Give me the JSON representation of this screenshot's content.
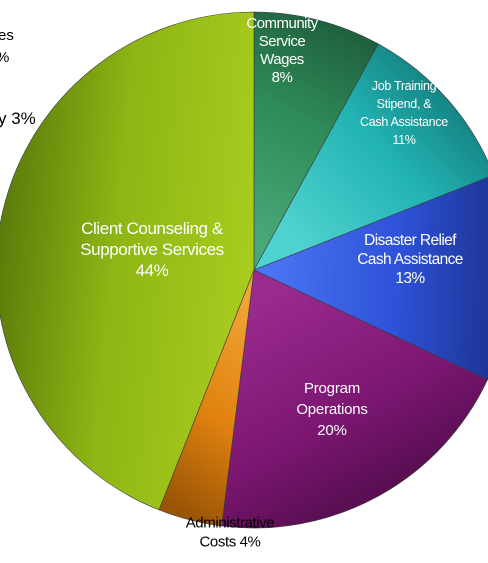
{
  "chart_data": {
    "type": "pie",
    "title": "",
    "slices": [
      {
        "label_lines": [
          "Community",
          "Service",
          "Wages",
          "8%"
        ],
        "value": 8,
        "color": "#2e8b57",
        "color_light": "#4aa97a",
        "color_dark": "#1f5e3d",
        "label_color": "#ffffff"
      },
      {
        "label_lines": [
          "Job Training",
          "Stipend, &",
          "Cash Assistance",
          "11%"
        ],
        "value": 11,
        "color": "#22b3b3",
        "color_light": "#4fd3d0",
        "color_dark": "#137878",
        "label_color": "#ffffff"
      },
      {
        "label_lines": [
          "Disaster Relief",
          "Cash Assistance",
          "13%"
        ],
        "value": 13,
        "color": "#2e52d8",
        "color_light": "#4d78f5",
        "color_dark": "#1b2f8a",
        "label_color": "#ffffff"
      },
      {
        "label_lines": [
          "Program",
          "Operations",
          "20%"
        ],
        "value": 20,
        "color": "#7a1670",
        "color_light": "#9a2a8e",
        "color_dark": "#4a0a45",
        "label_color": "#ffffff"
      },
      {
        "label_lines": [
          "Administrative",
          "Costs 4%"
        ],
        "value": 4,
        "color": "#e0820f",
        "color_light": "#f2a53a",
        "color_dark": "#9a5406",
        "label_color": "#000000"
      },
      {
        "label_lines": [
          "Client Counseling &",
          "Supportive Services",
          "44%"
        ],
        "value": 44,
        "color": "#8db514",
        "color_light": "#a9cc1e",
        "color_dark": "#5a7a0a",
        "label_color": "#ffffff"
      }
    ],
    "clipped_labels": [
      {
        "text": "es"
      },
      {
        "text": "%"
      },
      {
        "text": "y 3%"
      }
    ],
    "legend": "none"
  }
}
